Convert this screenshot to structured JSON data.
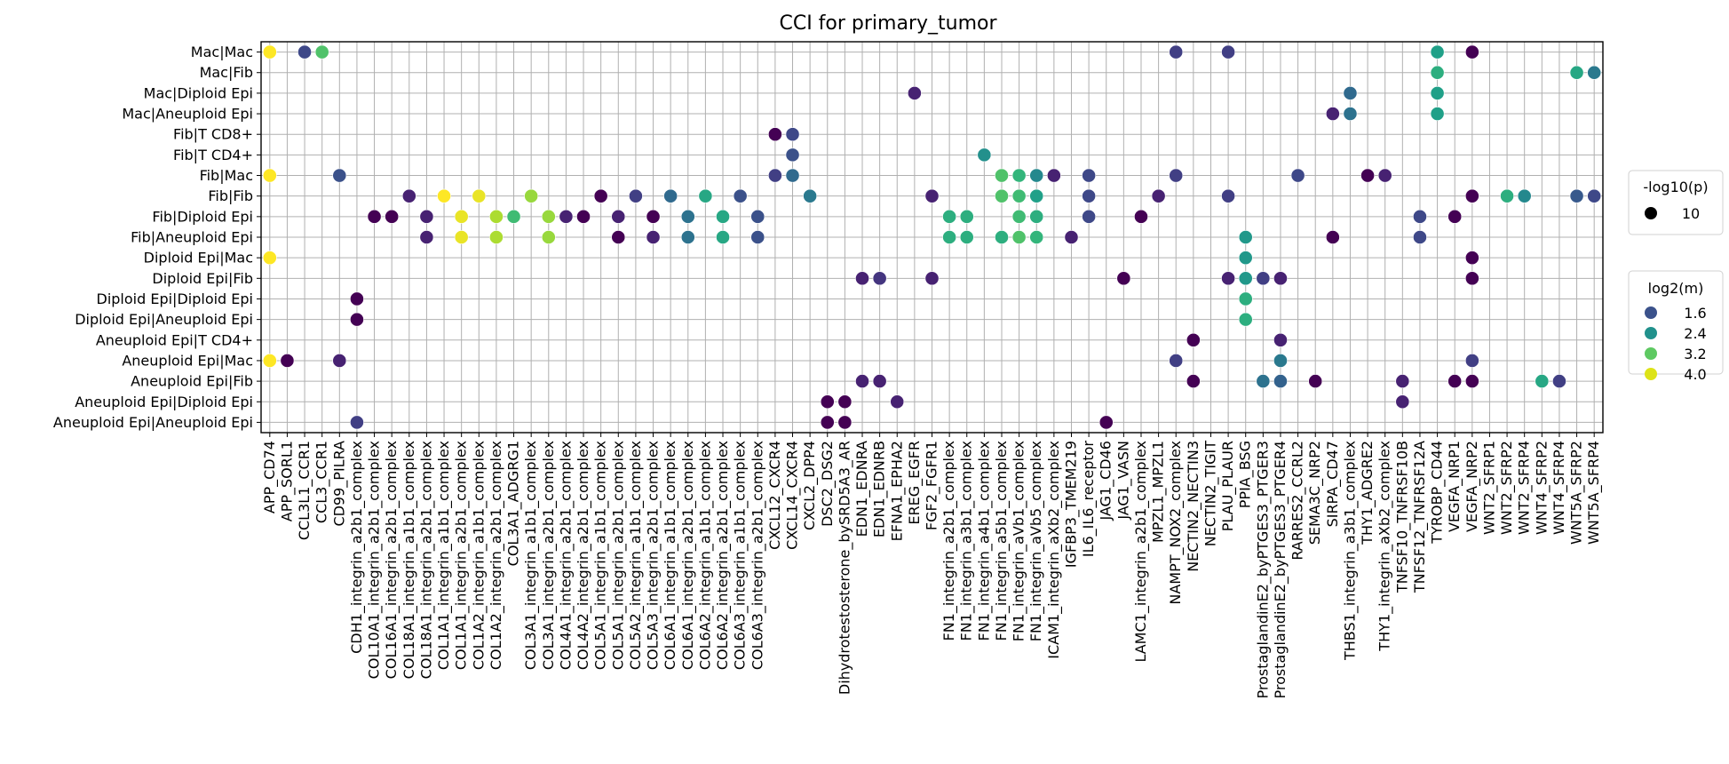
{
  "chart_data": {
    "type": "scatter",
    "title": "CCI for primary_tumor",
    "xlabel": "",
    "ylabel": "",
    "grid": true,
    "legend_placement": "right",
    "x_categories": [
      "APP_CD74",
      "APP_SORL1",
      "CCL3L1_CCR1",
      "CCL3_CCR1",
      "CD99_PILRA",
      "CDH1_integrin_a2b1_complex",
      "COL10A1_integrin_a2b1_complex",
      "COL16A1_integrin_a2b1_complex",
      "COL18A1_integrin_a1b1_complex",
      "COL18A1_integrin_a2b1_complex",
      "COL1A1_integrin_a1b1_complex",
      "COL1A1_integrin_a2b1_complex",
      "COL1A2_integrin_a1b1_complex",
      "COL1A2_integrin_a2b1_complex",
      "COL3A1_ADGRG1",
      "COL3A1_integrin_a1b1_complex",
      "COL3A1_integrin_a2b1_complex",
      "COL4A1_integrin_a2b1_complex",
      "COL4A2_integrin_a2b1_complex",
      "COL5A1_integrin_a1b1_complex",
      "COL5A1_integrin_a2b1_complex",
      "COL5A2_integrin_a1b1_complex",
      "COL5A3_integrin_a2b1_complex",
      "COL6A1_integrin_a1b1_complex",
      "COL6A1_integrin_a2b1_complex",
      "COL6A2_integrin_a1b1_complex",
      "COL6A2_integrin_a2b1_complex",
      "COL6A3_integrin_a1b1_complex",
      "COL6A3_integrin_a2b1_complex",
      "CXCL12_CXCR4",
      "CXCL14_CXCR4",
      "CXCL2_DPP4",
      "DSC2_DSG2",
      "Dihydrotestosterone_bySRD5A3_AR",
      "EDN1_EDNRA",
      "EDN1_EDNRB",
      "EFNA1_EPHA2",
      "EREG_EGFR",
      "FGF2_FGFR1",
      "FN1_integrin_a2b1_complex",
      "FN1_integrin_a3b1_complex",
      "FN1_integrin_a4b1_complex",
      "FN1_integrin_a5b1_complex",
      "FN1_integrin_aVb1_complex",
      "FN1_integrin_aVb5_complex",
      "ICAM1_integrin_aXb2_complex",
      "IGFBP3_TMEM219",
      "IL6_IL6_receptor",
      "JAG1_CD46",
      "JAG1_VASN",
      "LAMC1_integrin_a2b1_complex",
      "MPZL1_MPZL1",
      "NAMPT_NOX2_complex",
      "NECTIN2_NECTIN3",
      "NECTIN2_TIGIT",
      "PLAU_PLAUR",
      "PPIA_BSG",
      "ProstaglandinE2_byPTGES3_PTGER3",
      "ProstaglandinE2_byPTGES3_PTGER4",
      "RARRES2_CCRL2",
      "SEMA3C_NRP2",
      "SIRPA_CD47",
      "THBS1_integrin_a3b1_complex",
      "THY1_ADGRE2",
      "THY1_integrin_aXb2_complex",
      "TNFSF10_TNFRSF10B",
      "TNFSF12_TNFRSF12A",
      "TYROBP_CD44",
      "VEGFA_NRP1",
      "VEGFA_NRP2",
      "WNT2_SFRP1",
      "WNT2_SFRP2",
      "WNT2_SFRP4",
      "WNT4_SFRP2",
      "WNT4_SFRP4",
      "WNT5A_SFRP2",
      "WNT5A_SFRP4"
    ],
    "y_categories": [
      "Mac|Mac",
      "Mac|Fib",
      "Mac|Diploid Epi",
      "Mac|Aneuploid Epi",
      "Fib|T CD8+",
      "Fib|T CD4+",
      "Fib|Mac",
      "Fib|Fib",
      "Fib|Diploid Epi",
      "Fib|Aneuploid Epi",
      "Diploid Epi|Mac",
      "Diploid Epi|Fib",
      "Diploid Epi|Diploid Epi",
      "Diploid Epi|Aneuploid Epi",
      "Aneuploid Epi|T CD4+",
      "Aneuploid Epi|Mac",
      "Aneuploid Epi|Fib",
      "Aneuploid Epi|Diploid Epi",
      "Aneuploid Epi|Aneuploid Epi"
    ],
    "color_scale": {
      "name": "viridis",
      "min": 1.0,
      "max": 4.2
    },
    "size_legend": {
      "title": "-log10(p)",
      "entries": [
        {
          "label": "10",
          "value": 10
        }
      ]
    },
    "color_legend": {
      "title": "log2(m)",
      "entries": [
        {
          "label": "1.6",
          "value": 1.6,
          "color": "#3b528b"
        },
        {
          "label": "2.4",
          "value": 2.4,
          "color": "#21918c"
        },
        {
          "label": "3.2",
          "value": 3.2,
          "color": "#5ec962"
        },
        {
          "label": "4.0",
          "value": 4.0,
          "color": "#dde318"
        }
      ]
    },
    "points": [
      {
        "x": "APP_CD74",
        "y": "Mac|Mac",
        "m": 4.2
      },
      {
        "x": "CCL3L1_CCR1",
        "y": "Mac|Mac",
        "m": 1.7
      },
      {
        "x": "CCL3_CCR1",
        "y": "Mac|Mac",
        "m": 3.3
      },
      {
        "x": "NAMPT_NOX2_complex",
        "y": "Mac|Mac",
        "m": 1.6
      },
      {
        "x": "PLAU_PLAUR",
        "y": "Mac|Mac",
        "m": 1.6
      },
      {
        "x": "TYROBP_CD44",
        "y": "Mac|Mac",
        "m": 2.8
      },
      {
        "x": "VEGFA_NRP2",
        "y": "Mac|Mac",
        "m": 1.0
      },
      {
        "x": "TYROBP_CD44",
        "y": "Mac|Fib",
        "m": 3.0
      },
      {
        "x": "WNT5A_SFRP2",
        "y": "Mac|Fib",
        "m": 2.9
      },
      {
        "x": "WNT5A_SFRP4",
        "y": "Mac|Fib",
        "m": 2.3
      },
      {
        "x": "EREG_EGFR",
        "y": "Mac|Diploid Epi",
        "m": 1.3
      },
      {
        "x": "THBS1_integrin_a3b1_complex",
        "y": "Mac|Diploid Epi",
        "m": 2.1
      },
      {
        "x": "TYROBP_CD44",
        "y": "Mac|Diploid Epi",
        "m": 2.8
      },
      {
        "x": "SIRPA_CD47",
        "y": "Mac|Aneuploid Epi",
        "m": 1.3
      },
      {
        "x": "THBS1_integrin_a3b1_complex",
        "y": "Mac|Aneuploid Epi",
        "m": 2.2
      },
      {
        "x": "TYROBP_CD44",
        "y": "Mac|Aneuploid Epi",
        "m": 2.8
      },
      {
        "x": "CXCL12_CXCR4",
        "y": "Fib|T CD8+",
        "m": 1.0
      },
      {
        "x": "CXCL14_CXCR4",
        "y": "Fib|T CD8+",
        "m": 1.7
      },
      {
        "x": "CXCL14_CXCR4",
        "y": "Fib|T CD4+",
        "m": 1.8
      },
      {
        "x": "FN1_integrin_a4b1_complex",
        "y": "Fib|T CD4+",
        "m": 2.6
      },
      {
        "x": "APP_CD74",
        "y": "Fib|Mac",
        "m": 4.2
      },
      {
        "x": "CD99_PILRA",
        "y": "Fib|Mac",
        "m": 1.8
      },
      {
        "x": "CXCL12_CXCR4",
        "y": "Fib|Mac",
        "m": 1.6
      },
      {
        "x": "CXCL14_CXCR4",
        "y": "Fib|Mac",
        "m": 2.1
      },
      {
        "x": "FN1_integrin_a5b1_complex",
        "y": "Fib|Mac",
        "m": 3.3
      },
      {
        "x": "FN1_integrin_aVb1_complex",
        "y": "Fib|Mac",
        "m": 3.1
      },
      {
        "x": "FN1_integrin_aVb5_complex",
        "y": "Fib|Mac",
        "m": 2.5
      },
      {
        "x": "ICAM1_integrin_aXb2_complex",
        "y": "Fib|Mac",
        "m": 1.3
      },
      {
        "x": "IL6_IL6_receptor",
        "y": "Fib|Mac",
        "m": 1.7
      },
      {
        "x": "NAMPT_NOX2_complex",
        "y": "Fib|Mac",
        "m": 1.6
      },
      {
        "x": "RARRES2_CCRL2",
        "y": "Fib|Mac",
        "m": 1.7
      },
      {
        "x": "THY1_ADGRE2",
        "y": "Fib|Mac",
        "m": 1.0
      },
      {
        "x": "THY1_integrin_aXb2_complex",
        "y": "Fib|Mac",
        "m": 1.3
      },
      {
        "x": "COL18A1_integrin_a1b1_complex",
        "y": "Fib|Fib",
        "m": 1.3
      },
      {
        "x": "COL1A1_integrin_a1b1_complex",
        "y": "Fib|Fib",
        "m": 4.2
      },
      {
        "x": "COL1A2_integrin_a1b1_complex",
        "y": "Fib|Fib",
        "m": 4.1
      },
      {
        "x": "COL3A1_integrin_a1b1_complex",
        "y": "Fib|Fib",
        "m": 3.7
      },
      {
        "x": "COL5A1_integrin_a1b1_complex",
        "y": "Fib|Fib",
        "m": 1.0
      },
      {
        "x": "COL5A2_integrin_a1b1_complex",
        "y": "Fib|Fib",
        "m": 1.6
      },
      {
        "x": "COL6A1_integrin_a1b1_complex",
        "y": "Fib|Fib",
        "m": 2.1
      },
      {
        "x": "COL6A2_integrin_a1b1_complex",
        "y": "Fib|Fib",
        "m": 2.9
      },
      {
        "x": "COL6A3_integrin_a1b1_complex",
        "y": "Fib|Fib",
        "m": 1.8
      },
      {
        "x": "CXCL2_DPP4",
        "y": "Fib|Fib",
        "m": 2.3
      },
      {
        "x": "FGF2_FGFR1",
        "y": "Fib|Fib",
        "m": 1.3
      },
      {
        "x": "FN1_integrin_a5b1_complex",
        "y": "Fib|Fib",
        "m": 3.3
      },
      {
        "x": "FN1_integrin_aVb1_complex",
        "y": "Fib|Fib",
        "m": 3.2
      },
      {
        "x": "FN1_integrin_aVb5_complex",
        "y": "Fib|Fib",
        "m": 2.8
      },
      {
        "x": "IL6_IL6_receptor",
        "y": "Fib|Fib",
        "m": 1.7
      },
      {
        "x": "MPZL1_MPZL1",
        "y": "Fib|Fib",
        "m": 1.3
      },
      {
        "x": "PLAU_PLAUR",
        "y": "Fib|Fib",
        "m": 1.6
      },
      {
        "x": "VEGFA_NRP2",
        "y": "Fib|Fib",
        "m": 1.0
      },
      {
        "x": "WNT2_SFRP2",
        "y": "Fib|Fib",
        "m": 3.0
      },
      {
        "x": "WNT2_SFRP4",
        "y": "Fib|Fib",
        "m": 2.5
      },
      {
        "x": "WNT5A_SFRP2",
        "y": "Fib|Fib",
        "m": 1.9
      },
      {
        "x": "WNT5A_SFRP4",
        "y": "Fib|Fib",
        "m": 1.7
      },
      {
        "x": "COL10A1_integrin_a2b1_complex",
        "y": "Fib|Diploid Epi",
        "m": 1.0
      },
      {
        "x": "COL16A1_integrin_a2b1_complex",
        "y": "Fib|Diploid Epi",
        "m": 1.0
      },
      {
        "x": "COL18A1_integrin_a2b1_complex",
        "y": "Fib|Diploid Epi",
        "m": 1.3
      },
      {
        "x": "COL1A1_integrin_a2b1_complex",
        "y": "Fib|Diploid Epi",
        "m": 4.1
      },
      {
        "x": "COL1A2_integrin_a2b1_complex",
        "y": "Fib|Diploid Epi",
        "m": 3.8
      },
      {
        "x": "COL3A1_ADGRG1",
        "y": "Fib|Diploid Epi",
        "m": 3.2
      },
      {
        "x": "COL3A1_integrin_a2b1_complex",
        "y": "Fib|Diploid Epi",
        "m": 3.7
      },
      {
        "x": "COL4A1_integrin_a2b1_complex",
        "y": "Fib|Diploid Epi",
        "m": 1.3
      },
      {
        "x": "COL4A2_integrin_a2b1_complex",
        "y": "Fib|Diploid Epi",
        "m": 1.0
      },
      {
        "x": "COL5A1_integrin_a2b1_complex",
        "y": "Fib|Diploid Epi",
        "m": 1.3
      },
      {
        "x": "COL5A3_integrin_a2b1_complex",
        "y": "Fib|Diploid Epi",
        "m": 1.0
      },
      {
        "x": "COL6A1_integrin_a2b1_complex",
        "y": "Fib|Diploid Epi",
        "m": 2.2
      },
      {
        "x": "COL6A2_integrin_a2b1_complex",
        "y": "Fib|Diploid Epi",
        "m": 2.9
      },
      {
        "x": "COL6A3_integrin_a2b1_complex",
        "y": "Fib|Diploid Epi",
        "m": 1.8
      },
      {
        "x": "FN1_integrin_a2b1_complex",
        "y": "Fib|Diploid Epi",
        "m": 3.0
      },
      {
        "x": "FN1_integrin_a3b1_complex",
        "y": "Fib|Diploid Epi",
        "m": 3.0
      },
      {
        "x": "FN1_integrin_aVb1_complex",
        "y": "Fib|Diploid Epi",
        "m": 3.2
      },
      {
        "x": "FN1_integrin_aVb5_complex",
        "y": "Fib|Diploid Epi",
        "m": 3.0
      },
      {
        "x": "IL6_IL6_receptor",
        "y": "Fib|Diploid Epi",
        "m": 1.7
      },
      {
        "x": "LAMC1_integrin_a2b1_complex",
        "y": "Fib|Diploid Epi",
        "m": 1.0
      },
      {
        "x": "TNFSF12_TNFRSF12A",
        "y": "Fib|Diploid Epi",
        "m": 1.7
      },
      {
        "x": "VEGFA_NRP1",
        "y": "Fib|Diploid Epi",
        "m": 1.0
      },
      {
        "x": "COL18A1_integrin_a2b1_complex",
        "y": "Fib|Aneuploid Epi",
        "m": 1.3
      },
      {
        "x": "COL1A1_integrin_a2b1_complex",
        "y": "Fib|Aneuploid Epi",
        "m": 4.1
      },
      {
        "x": "COL1A2_integrin_a2b1_complex",
        "y": "Fib|Aneuploid Epi",
        "m": 3.8
      },
      {
        "x": "COL3A1_integrin_a2b1_complex",
        "y": "Fib|Aneuploid Epi",
        "m": 3.7
      },
      {
        "x": "COL5A1_integrin_a2b1_complex",
        "y": "Fib|Aneuploid Epi",
        "m": 1.0
      },
      {
        "x": "COL5A3_integrin_a2b1_complex",
        "y": "Fib|Aneuploid Epi",
        "m": 1.3
      },
      {
        "x": "COL6A1_integrin_a2b1_complex",
        "y": "Fib|Aneuploid Epi",
        "m": 2.2
      },
      {
        "x": "COL6A2_integrin_a2b1_complex",
        "y": "Fib|Aneuploid Epi",
        "m": 2.9
      },
      {
        "x": "COL6A3_integrin_a2b1_complex",
        "y": "Fib|Aneuploid Epi",
        "m": 1.8
      },
      {
        "x": "FN1_integrin_a2b1_complex",
        "y": "Fib|Aneuploid Epi",
        "m": 3.0
      },
      {
        "x": "FN1_integrin_a3b1_complex",
        "y": "Fib|Aneuploid Epi",
        "m": 3.0
      },
      {
        "x": "FN1_integrin_a5b1_complex",
        "y": "Fib|Aneuploid Epi",
        "m": 3.0
      },
      {
        "x": "FN1_integrin_aVb1_complex",
        "y": "Fib|Aneuploid Epi",
        "m": 3.3
      },
      {
        "x": "FN1_integrin_aVb5_complex",
        "y": "Fib|Aneuploid Epi",
        "m": 3.1
      },
      {
        "x": "IGFBP3_TMEM219",
        "y": "Fib|Aneuploid Epi",
        "m": 1.3
      },
      {
        "x": "PPIA_BSG",
        "y": "Fib|Aneuploid Epi",
        "m": 2.7
      },
      {
        "x": "SIRPA_CD47",
        "y": "Fib|Aneuploid Epi",
        "m": 1.0
      },
      {
        "x": "TNFSF12_TNFRSF12A",
        "y": "Fib|Aneuploid Epi",
        "m": 1.7
      },
      {
        "x": "APP_CD74",
        "y": "Diploid Epi|Mac",
        "m": 4.2
      },
      {
        "x": "PPIA_BSG",
        "y": "Diploid Epi|Mac",
        "m": 2.7
      },
      {
        "x": "VEGFA_NRP2",
        "y": "Diploid Epi|Mac",
        "m": 1.0
      },
      {
        "x": "EDN1_EDNRA",
        "y": "Diploid Epi|Fib",
        "m": 1.3
      },
      {
        "x": "EDN1_EDNRB",
        "y": "Diploid Epi|Fib",
        "m": 1.5
      },
      {
        "x": "FGF2_FGFR1",
        "y": "Diploid Epi|Fib",
        "m": 1.3
      },
      {
        "x": "JAG1_VASN",
        "y": "Diploid Epi|Fib",
        "m": 1.0
      },
      {
        "x": "PLAU_PLAUR",
        "y": "Diploid Epi|Fib",
        "m": 1.3
      },
      {
        "x": "PPIA_BSG",
        "y": "Diploid Epi|Fib",
        "m": 2.7
      },
      {
        "x": "ProstaglandinE2_byPTGES3_PTGER3",
        "y": "Diploid Epi|Fib",
        "m": 1.6
      },
      {
        "x": "ProstaglandinE2_byPTGES3_PTGER4",
        "y": "Diploid Epi|Fib",
        "m": 1.3
      },
      {
        "x": "VEGFA_NRP2",
        "y": "Diploid Epi|Fib",
        "m": 1.0
      },
      {
        "x": "CDH1_integrin_a2b1_complex",
        "y": "Diploid Epi|Diploid Epi",
        "m": 1.0
      },
      {
        "x": "PPIA_BSG",
        "y": "Diploid Epi|Diploid Epi",
        "m": 3.0
      },
      {
        "x": "CDH1_integrin_a2b1_complex",
        "y": "Diploid Epi|Aneuploid Epi",
        "m": 1.0
      },
      {
        "x": "PPIA_BSG",
        "y": "Diploid Epi|Aneuploid Epi",
        "m": 3.0
      },
      {
        "x": "NECTIN2_NECTIN3",
        "y": "Aneuploid Epi|T CD4+",
        "m": 1.0
      },
      {
        "x": "ProstaglandinE2_byPTGES3_PTGER4",
        "y": "Aneuploid Epi|T CD4+",
        "m": 1.3
      },
      {
        "x": "APP_CD74",
        "y": "Aneuploid Epi|Mac",
        "m": 4.2
      },
      {
        "x": "APP_SORL1",
        "y": "Aneuploid Epi|Mac",
        "m": 1.0
      },
      {
        "x": "CD99_PILRA",
        "y": "Aneuploid Epi|Mac",
        "m": 1.3
      },
      {
        "x": "NAMPT_NOX2_complex",
        "y": "Aneuploid Epi|Mac",
        "m": 1.6
      },
      {
        "x": "ProstaglandinE2_byPTGES3_PTGER4",
        "y": "Aneuploid Epi|Mac",
        "m": 2.3
      },
      {
        "x": "VEGFA_NRP2",
        "y": "Aneuploid Epi|Mac",
        "m": 1.6
      },
      {
        "x": "EDN1_EDNRA",
        "y": "Aneuploid Epi|Fib",
        "m": 1.3
      },
      {
        "x": "EDN1_EDNRB",
        "y": "Aneuploid Epi|Fib",
        "m": 1.3
      },
      {
        "x": "NECTIN2_NECTIN3",
        "y": "Aneuploid Epi|Fib",
        "m": 1.0
      },
      {
        "x": "ProstaglandinE2_byPTGES3_PTGER3",
        "y": "Aneuploid Epi|Fib",
        "m": 2.2
      },
      {
        "x": "ProstaglandinE2_byPTGES3_PTGER4",
        "y": "Aneuploid Epi|Fib",
        "m": 2.0
      },
      {
        "x": "SEMA3C_NRP2",
        "y": "Aneuploid Epi|Fib",
        "m": 1.0
      },
      {
        "x": "TNFSF10_TNFRSF10B",
        "y": "Aneuploid Epi|Fib",
        "m": 1.3
      },
      {
        "x": "VEGFA_NRP1",
        "y": "Aneuploid Epi|Fib",
        "m": 1.0
      },
      {
        "x": "VEGFA_NRP2",
        "y": "Aneuploid Epi|Fib",
        "m": 1.0
      },
      {
        "x": "WNT4_SFRP2",
        "y": "Aneuploid Epi|Fib",
        "m": 2.9
      },
      {
        "x": "WNT4_SFRP4",
        "y": "Aneuploid Epi|Fib",
        "m": 1.6
      },
      {
        "x": "DSC2_DSG2",
        "y": "Aneuploid Epi|Diploid Epi",
        "m": 1.0
      },
      {
        "x": "Dihydrotestosterone_bySRD5A3_AR",
        "y": "Aneuploid Epi|Diploid Epi",
        "m": 1.0
      },
      {
        "x": "EFNA1_EPHA2",
        "y": "Aneuploid Epi|Diploid Epi",
        "m": 1.3
      },
      {
        "x": "TNFSF10_TNFRSF10B",
        "y": "Aneuploid Epi|Diploid Epi",
        "m": 1.3
      },
      {
        "x": "CDH1_integrin_a2b1_complex",
        "y": "Aneuploid Epi|Aneuploid Epi",
        "m": 1.6
      },
      {
        "x": "DSC2_DSG2",
        "y": "Aneuploid Epi|Aneuploid Epi",
        "m": 1.0
      },
      {
        "x": "Dihydrotestosterone_bySRD5A3_AR",
        "y": "Aneuploid Epi|Aneuploid Epi",
        "m": 1.0
      },
      {
        "x": "JAG1_CD46",
        "y": "Aneuploid Epi|Aneuploid Epi",
        "m": 1.0
      }
    ]
  }
}
